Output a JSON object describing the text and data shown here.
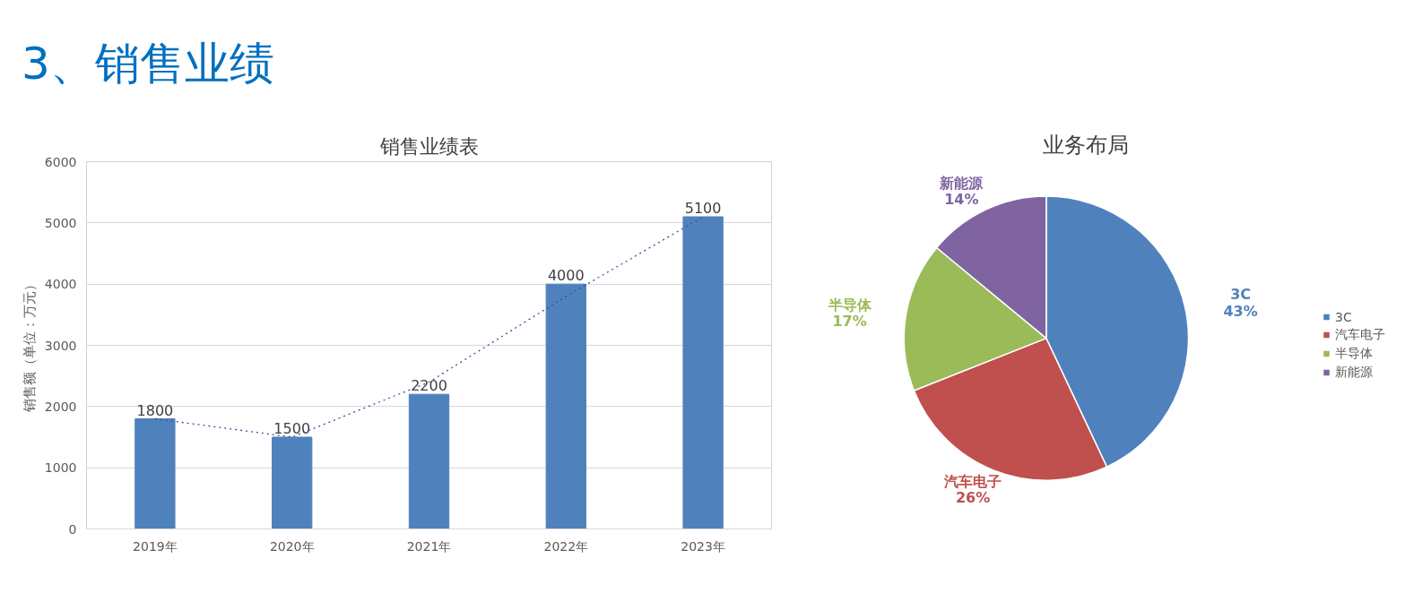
{
  "chart_data": [
    {
      "type": "other",
      "title": "3、销售业绩"
    },
    {
      "type": "bar",
      "title": "销售业绩表",
      "ylabel": "销售额（单位：万元）",
      "categories": [
        "2019年",
        "2020年",
        "2021年",
        "2022年",
        "2023年"
      ],
      "series": [
        {
          "type": "bar",
          "color": "#4f81bd",
          "values": [
            1800,
            1500,
            2200,
            4000,
            5100
          ],
          "value_labels": [
            "1800",
            "1500",
            "2200",
            "4000",
            "5100"
          ]
        },
        {
          "type": "line",
          "color": "#2f5597",
          "line_style": "dotted",
          "values": [
            1800,
            1500,
            2400,
            3800,
            5100
          ]
        }
      ],
      "ylim": [
        0,
        6000
      ],
      "yticks": [
        0,
        1000,
        2000,
        3000,
        4000,
        5000,
        6000
      ],
      "grid": "y",
      "legend": false
    },
    {
      "type": "pie",
      "title": "业务布局",
      "categories": [
        "3C",
        "汽车电子",
        "半导体",
        "新能源"
      ],
      "values": [
        43,
        26,
        17,
        14
      ],
      "colors": [
        "#4f81bd",
        "#c0504d",
        "#9bbb59",
        "#8064a2"
      ],
      "value_labels": [
        "43%",
        "26%",
        "17%",
        "14%"
      ],
      "legend": "right"
    }
  ]
}
